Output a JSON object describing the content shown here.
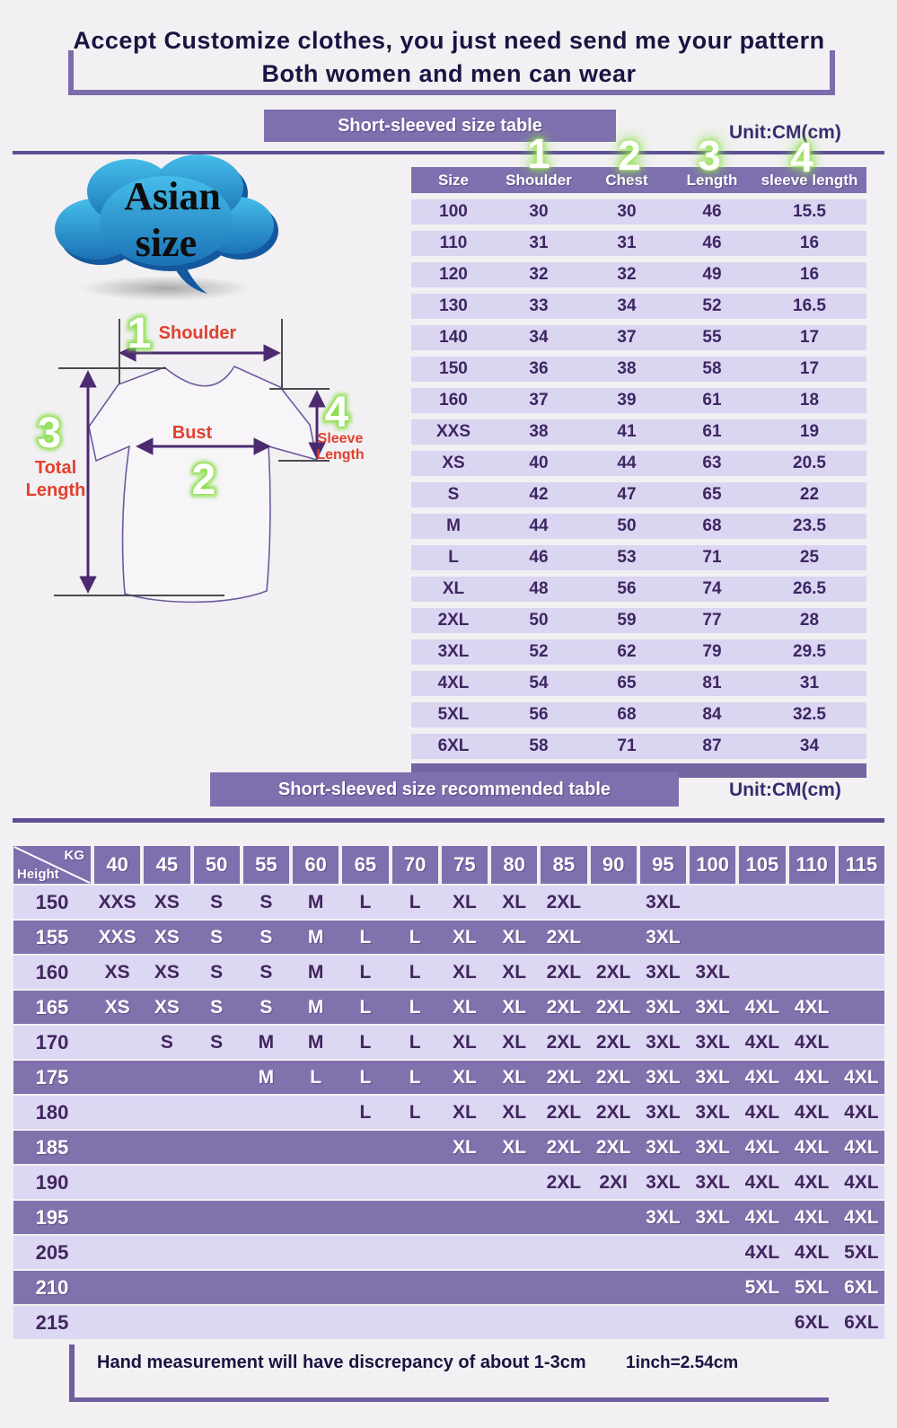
{
  "top_banner": {
    "line1": "Accept Customize clothes, you just need send me your pattern",
    "line2": "Both women and men can wear"
  },
  "cloud": {
    "line1": "Asian",
    "line2": "size"
  },
  "size_table": {
    "banner": "Short-sleeved size table",
    "unit": "Unit:CM(cm)",
    "column_numbers": [
      "1",
      "2",
      "3",
      "4"
    ],
    "columns": [
      "Size",
      "Shoulder",
      "Chest",
      "Length",
      "sleeve length"
    ],
    "rows": [
      [
        "100",
        "30",
        "30",
        "46",
        "15.5"
      ],
      [
        "110",
        "31",
        "31",
        "46",
        "16"
      ],
      [
        "120",
        "32",
        "32",
        "49",
        "16"
      ],
      [
        "130",
        "33",
        "34",
        "52",
        "16.5"
      ],
      [
        "140",
        "34",
        "37",
        "55",
        "17"
      ],
      [
        "150",
        "36",
        "38",
        "58",
        "17"
      ],
      [
        "160",
        "37",
        "39",
        "61",
        "18"
      ],
      [
        "XXS",
        "38",
        "41",
        "61",
        "19"
      ],
      [
        "XS",
        "40",
        "44",
        "63",
        "20.5"
      ],
      [
        "S",
        "42",
        "47",
        "65",
        "22"
      ],
      [
        "M",
        "44",
        "50",
        "68",
        "23.5"
      ],
      [
        "L",
        "46",
        "53",
        "71",
        "25"
      ],
      [
        "XL",
        "48",
        "56",
        "74",
        "26.5"
      ],
      [
        "2XL",
        "50",
        "59",
        "77",
        "28"
      ],
      [
        "3XL",
        "52",
        "62",
        "79",
        "29.5"
      ],
      [
        "4XL",
        "54",
        "65",
        "81",
        "31"
      ],
      [
        "5XL",
        "56",
        "68",
        "84",
        "32.5"
      ],
      [
        "6XL",
        "58",
        "71",
        "87",
        "34"
      ]
    ]
  },
  "diagram": {
    "numbers": {
      "shoulder": "1",
      "bust": "2",
      "total": "3",
      "sleeve": "4"
    },
    "labels": {
      "shoulder": "Shoulder",
      "bust": "Bust",
      "total_1": "Total",
      "total_2": "Length",
      "sleeve_1": "Sleeve",
      "sleeve_2": "Length"
    }
  },
  "recommend_table": {
    "banner": "Short-sleeved size recommended table",
    "unit": "Unit:CM(cm)",
    "corner": {
      "kg": "KG",
      "height": "Height"
    },
    "weights": [
      "40",
      "45",
      "50",
      "55",
      "60",
      "65",
      "70",
      "75",
      "80",
      "85",
      "90",
      "95",
      "100",
      "105",
      "110",
      "115"
    ],
    "rows": [
      {
        "height": "150",
        "shade": "light",
        "cells": [
          "XXS",
          "XS",
          "S",
          "S",
          "M",
          "L",
          "L",
          "XL",
          "XL",
          "2XL",
          "",
          "3XL",
          "",
          "",
          "",
          ""
        ]
      },
      {
        "height": "155",
        "shade": "dark",
        "cells": [
          "XXS",
          "XS",
          "S",
          "S",
          "M",
          "L",
          "L",
          "XL",
          "XL",
          "2XL",
          "",
          "3XL",
          "",
          "",
          "",
          ""
        ]
      },
      {
        "height": "160",
        "shade": "light",
        "cells": [
          "XS",
          "XS",
          "S",
          "S",
          "M",
          "L",
          "L",
          "XL",
          "XL",
          "2XL",
          "2XL",
          "3XL",
          "3XL",
          "",
          "",
          ""
        ]
      },
      {
        "height": "165",
        "shade": "dark",
        "cells": [
          "XS",
          "XS",
          "S",
          "S",
          "M",
          "L",
          "L",
          "XL",
          "XL",
          "2XL",
          "2XL",
          "3XL",
          "3XL",
          "4XL",
          "4XL",
          ""
        ]
      },
      {
        "height": "170",
        "shade": "light",
        "cells": [
          "",
          "S",
          "S",
          "M",
          "M",
          "L",
          "L",
          "XL",
          "XL",
          "2XL",
          "2XL",
          "3XL",
          "3XL",
          "4XL",
          "4XL",
          ""
        ]
      },
      {
        "height": "175",
        "shade": "dark",
        "cells": [
          "",
          "",
          "",
          "M",
          "L",
          "L",
          "L",
          "XL",
          "XL",
          "2XL",
          "2XL",
          "3XL",
          "3XL",
          "4XL",
          "4XL",
          "4XL"
        ]
      },
      {
        "height": "180",
        "shade": "light",
        "cells": [
          "",
          "",
          "",
          "",
          "",
          "L",
          "L",
          "XL",
          "XL",
          "2XL",
          "2XL",
          "3XL",
          "3XL",
          "4XL",
          "4XL",
          "4XL"
        ]
      },
      {
        "height": "185",
        "shade": "dark",
        "cells": [
          "",
          "",
          "",
          "",
          "",
          "",
          "",
          "XL",
          "XL",
          "2XL",
          "2XL",
          "3XL",
          "3XL",
          "4XL",
          "4XL",
          "4XL"
        ]
      },
      {
        "height": "190",
        "shade": "light",
        "cells": [
          "",
          "",
          "",
          "",
          "",
          "",
          "",
          "",
          "",
          "2XL",
          "2XI",
          "3XL",
          "3XL",
          "4XL",
          "4XL",
          "4XL"
        ]
      },
      {
        "height": "195",
        "shade": "dark",
        "cells": [
          "",
          "",
          "",
          "",
          "",
          "",
          "",
          "",
          "",
          "",
          "",
          "3XL",
          "3XL",
          "4XL",
          "4XL",
          "4XL"
        ]
      },
      {
        "height": "205",
        "shade": "light",
        "cells": [
          "",
          "",
          "",
          "",
          "",
          "",
          "",
          "",
          "",
          "",
          "",
          "",
          "",
          "4XL",
          "4XL",
          "5XL"
        ]
      },
      {
        "height": "210",
        "shade": "dark",
        "cells": [
          "",
          "",
          "",
          "",
          "",
          "",
          "",
          "",
          "",
          "",
          "",
          "",
          "",
          "5XL",
          "5XL",
          "6XL"
        ]
      },
      {
        "height": "215",
        "shade": "light",
        "cells": [
          "",
          "",
          "",
          "",
          "",
          "",
          "",
          "",
          "",
          "",
          "",
          "",
          "",
          "",
          "6XL",
          "6XL"
        ]
      }
    ]
  },
  "footer": {
    "note": "Hand measurement will have discrepancy of about  1-3cm",
    "conversion": "1inch=2.54cm"
  }
}
